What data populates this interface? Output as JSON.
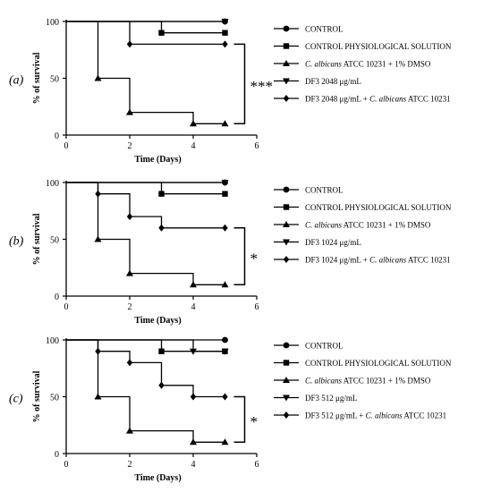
{
  "colors": {
    "ink": "#000000",
    "background": "#ffffff"
  },
  "chart_data": [
    {
      "type": "line",
      "step": true,
      "panel_label": "(a)",
      "xlabel": "Time (Days)",
      "ylabel": "% of survival",
      "xlim": [
        0,
        6
      ],
      "ylim": [
        0,
        100
      ],
      "xticks": [
        "0",
        "2",
        "4",
        "6"
      ],
      "yticks": [
        "0",
        "50",
        "100"
      ],
      "grid": false,
      "legend_position": "right",
      "significance": "***",
      "bracket_between": [
        "DF3 2048 μg/mL + C. albicans ATCC 10231",
        "C. albicans ATCC 10231 + 1% DMSO"
      ],
      "series": [
        {
          "marker": "circle",
          "legend_parts": [
            {
              "text": "CONTROL"
            }
          ],
          "x": [
            0,
            5
          ],
          "y": [
            100,
            100
          ]
        },
        {
          "marker": "square",
          "legend_parts": [
            {
              "text": "CONTROL PHYSIOLOGICAL SOLUTION"
            }
          ],
          "x": [
            0,
            3,
            5
          ],
          "y": [
            100,
            90,
            90
          ]
        },
        {
          "marker": "triangle-up",
          "legend_parts": [
            {
              "text": "C. albicans",
              "italic": true
            },
            {
              "text": " ATCC 10231 + 1% DMSO"
            }
          ],
          "x": [
            0,
            1,
            2,
            4,
            5
          ],
          "y": [
            100,
            50,
            20,
            10,
            10
          ]
        },
        {
          "marker": "triangle-down",
          "legend_parts": [
            {
              "text": "DF3 2048 μg/mL"
            }
          ],
          "x": [
            0,
            5
          ],
          "y": [
            100,
            100
          ]
        },
        {
          "marker": "diamond",
          "legend_parts": [
            {
              "text": "DF3 2048 μg/mL + "
            },
            {
              "text": "C. albicans",
              "italic": true
            },
            {
              "text": " ATCC 10231"
            }
          ],
          "x": [
            0,
            2,
            5
          ],
          "y": [
            100,
            80,
            80
          ]
        }
      ]
    },
    {
      "type": "line",
      "step": true,
      "panel_label": "(b)",
      "xlabel": "Time (Days)",
      "ylabel": "% of survival",
      "xlim": [
        0,
        6
      ],
      "ylim": [
        0,
        100
      ],
      "xticks": [
        "0",
        "2",
        "4",
        "6"
      ],
      "yticks": [
        "0",
        "50",
        "100"
      ],
      "grid": false,
      "legend_position": "right",
      "significance": "*",
      "bracket_between": [
        "DF3 1024 μg/mL + C. albicans ATCC 10231",
        "C. albicans ATCC 10231 + 1% DMSO"
      ],
      "series": [
        {
          "marker": "circle",
          "legend_parts": [
            {
              "text": "CONTROL"
            }
          ],
          "x": [
            0,
            5
          ],
          "y": [
            100,
            100
          ]
        },
        {
          "marker": "square",
          "legend_parts": [
            {
              "text": "CONTROL PHYSIOLOGICAL SOLUTION"
            }
          ],
          "x": [
            0,
            3,
            5
          ],
          "y": [
            100,
            90,
            90
          ]
        },
        {
          "marker": "triangle-up",
          "legend_parts": [
            {
              "text": "C. albicans",
              "italic": true
            },
            {
              "text": " ATCC 10231 + 1% DMSO"
            }
          ],
          "x": [
            0,
            1,
            2,
            4,
            5
          ],
          "y": [
            100,
            50,
            20,
            10,
            10
          ]
        },
        {
          "marker": "triangle-down",
          "legend_parts": [
            {
              "text": "DF3 1024 μg/mL"
            }
          ],
          "x": [
            0,
            5
          ],
          "y": [
            100,
            100
          ]
        },
        {
          "marker": "diamond",
          "legend_parts": [
            {
              "text": "DF3 1024 μg/mL + "
            },
            {
              "text": "C. albicans",
              "italic": true
            },
            {
              "text": " ATCC 10231"
            }
          ],
          "x": [
            0,
            1,
            2,
            3,
            5
          ],
          "y": [
            100,
            90,
            70,
            60,
            60
          ]
        }
      ]
    },
    {
      "type": "line",
      "step": true,
      "panel_label": "(c)",
      "xlabel": "Time (Days)",
      "ylabel": "% of survival",
      "xlim": [
        0,
        6
      ],
      "ylim": [
        0,
        100
      ],
      "xticks": [
        "0",
        "2",
        "4",
        "6"
      ],
      "yticks": [
        "0",
        "50",
        "100"
      ],
      "grid": false,
      "legend_position": "right",
      "significance": "*",
      "bracket_between": [
        "DF3 512 μg/mL + C. albicans ATCC 10231",
        "C. albicans ATCC 10231 + 1% DMSO"
      ],
      "series": [
        {
          "marker": "circle",
          "legend_parts": [
            {
              "text": "CONTROL"
            }
          ],
          "x": [
            0,
            5
          ],
          "y": [
            100,
            100
          ]
        },
        {
          "marker": "square",
          "legend_parts": [
            {
              "text": "CONTROL PHYSIOLOGICAL SOLUTION"
            }
          ],
          "x": [
            0,
            3,
            5
          ],
          "y": [
            100,
            90,
            90
          ]
        },
        {
          "marker": "triangle-up",
          "legend_parts": [
            {
              "text": "C. albicans",
              "italic": true
            },
            {
              "text": " ATCC 10231 + 1% DMSO"
            }
          ],
          "x": [
            0,
            1,
            2,
            4,
            5
          ],
          "y": [
            100,
            50,
            20,
            10,
            10
          ]
        },
        {
          "marker": "triangle-down",
          "legend_parts": [
            {
              "text": "DF3 512 μg/mL"
            }
          ],
          "x": [
            0,
            4,
            5
          ],
          "y": [
            100,
            90,
            90
          ]
        },
        {
          "marker": "diamond",
          "legend_parts": [
            {
              "text": "DF3 512 μg/mL + "
            },
            {
              "text": "C. albicans",
              "italic": true
            },
            {
              "text": " ATCC 10231"
            }
          ],
          "x": [
            0,
            1,
            2,
            3,
            4,
            5
          ],
          "y": [
            100,
            90,
            80,
            60,
            50,
            50
          ]
        }
      ]
    }
  ]
}
